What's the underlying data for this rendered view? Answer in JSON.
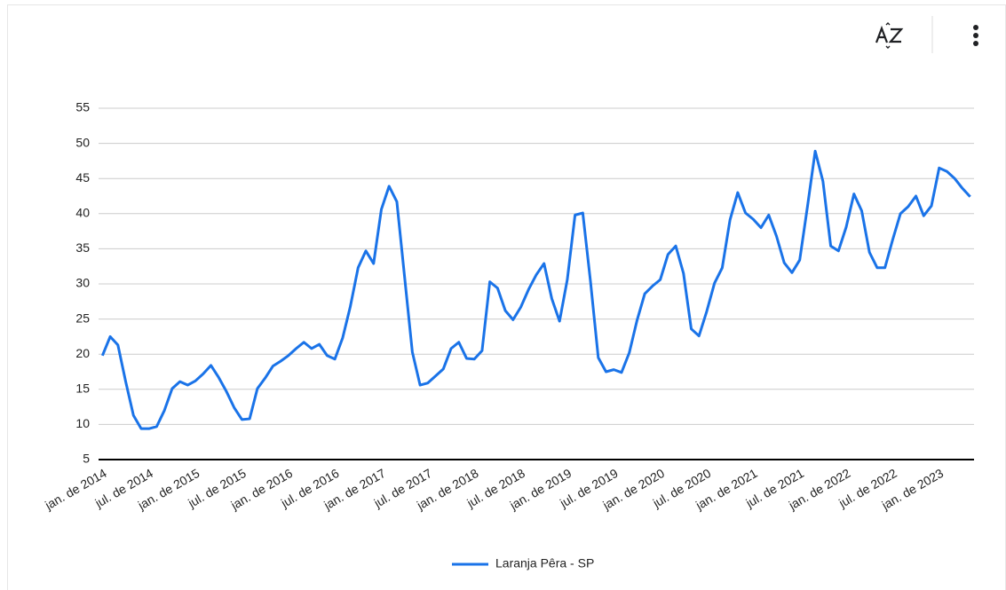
{
  "chart_data": {
    "type": "line",
    "categories": [
      "jan. de 2014",
      null,
      null,
      null,
      null,
      null,
      "jul. de 2014",
      null,
      null,
      null,
      null,
      null,
      "jan. de 2015",
      null,
      null,
      null,
      null,
      null,
      "jul. de 2015",
      null,
      null,
      null,
      null,
      null,
      "jan. de 2016",
      null,
      null,
      null,
      null,
      null,
      "jul. de 2016",
      null,
      null,
      null,
      null,
      null,
      "jan. de 2017",
      null,
      null,
      null,
      null,
      null,
      "jul. de 2017",
      null,
      null,
      null,
      null,
      null,
      "jan. de 2018",
      null,
      null,
      null,
      null,
      null,
      "jul. de 2018",
      null,
      null,
      null,
      null,
      null,
      "jan. de 2019",
      null,
      null,
      null,
      null,
      null,
      "jul. de 2019",
      null,
      null,
      null,
      null,
      null,
      "jan. de 2020",
      null,
      null,
      null,
      null,
      null,
      "jul. de 2020",
      null,
      null,
      null,
      null,
      null,
      "jan. de 2021",
      null,
      null,
      null,
      null,
      null,
      "jul. de 2021",
      null,
      null,
      null,
      null,
      null,
      "jan. de 2022",
      null,
      null,
      null,
      null,
      null,
      "jul. de 2022",
      null,
      null,
      null,
      null,
      null,
      "jan. de 2023",
      null,
      null,
      null,
      null
    ],
    "series": [
      {
        "name": "Laranja Pêra - SP",
        "color": "#1a73e8",
        "values": [
          19.8,
          22.5,
          21.3,
          16.1,
          11.3,
          9.4,
          9.4,
          9.7,
          12,
          15.1,
          16.1,
          15.6,
          16.2,
          17.2,
          18.4,
          16.7,
          14.7,
          12.4,
          10.7,
          10.8,
          15.1,
          16.6,
          18.3,
          19,
          19.8,
          20.8,
          21.7,
          20.8,
          21.4,
          19.8,
          19.3,
          22.3,
          26.8,
          32.3,
          34.7,
          32.9,
          40.6,
          43.9,
          41.7,
          31,
          20.3,
          15.6,
          15.9,
          16.9,
          17.9,
          20.8,
          21.7,
          19.4,
          19.3,
          20.5,
          30.3,
          29.4,
          26.2,
          24.9,
          26.7,
          29.2,
          31.3,
          32.9,
          27.9,
          24.7,
          30.6,
          39.8,
          40.1,
          30.3,
          19.5,
          17.5,
          17.8,
          17.4,
          20.2,
          24.8,
          28.6,
          29.7,
          30.6,
          34.2,
          35.4,
          31.5,
          23.6,
          22.6,
          26.1,
          30.1,
          32.3,
          39.1,
          43,
          40.1,
          39.2,
          38,
          39.8,
          36.8,
          33,
          31.6,
          33.4,
          41,
          48.9,
          44.6,
          35.4,
          34.7,
          38.1,
          42.8,
          40.4,
          34.5,
          32.3,
          32.3,
          36.3,
          40,
          41,
          42.5,
          39.7,
          41.1,
          46.5,
          46,
          45,
          43.6,
          42.4
        ]
      }
    ],
    "ylim": [
      5,
      55
    ],
    "yticks": [
      5,
      10,
      15,
      20,
      25,
      30,
      35,
      40,
      45,
      50,
      55
    ],
    "grid": true,
    "legend": "bottom"
  }
}
